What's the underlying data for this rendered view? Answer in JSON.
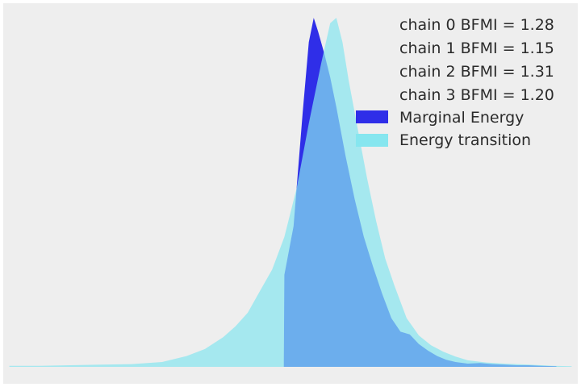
{
  "chart_data": {
    "type": "area",
    "title": "",
    "xlabel": "",
    "ylabel": "",
    "grid": false,
    "background": "#eeeeee",
    "xlim": [
      -4.6,
      4.8
    ],
    "ylim": [
      0,
      0.66
    ],
    "legend_position": "top-right",
    "bfmi": [
      {
        "label": "chain  0 BFMI = 1.28"
      },
      {
        "label": "chain  1 BFMI = 1.15"
      },
      {
        "label": "chain  2 BFMI = 1.31"
      },
      {
        "label": "chain  3 BFMI = 1.20"
      }
    ],
    "series": [
      {
        "name": "Marginal Energy",
        "color": "#2f2ee8",
        "x": [
          -0.01,
          0.0,
          0.15,
          0.3,
          0.4,
          0.48,
          0.55,
          0.65,
          0.75,
          0.85,
          1.0,
          1.15,
          1.3,
          1.45,
          1.6,
          1.75,
          1.9,
          2.05,
          2.2,
          2.35,
          2.5,
          2.65,
          2.8,
          3.0,
          3.2,
          3.4,
          3.6,
          3.8,
          4.0,
          4.2,
          4.45
        ],
        "y": [
          0.0,
          0.17,
          0.26,
          0.47,
          0.6,
          0.645,
          0.62,
          0.58,
          0.535,
          0.48,
          0.39,
          0.31,
          0.24,
          0.185,
          0.135,
          0.09,
          0.065,
          0.06,
          0.042,
          0.03,
          0.02,
          0.013,
          0.009,
          0.006,
          0.007,
          0.005,
          0.004,
          0.003,
          0.003,
          0.002,
          0.001
        ]
      },
      {
        "name": "Energy transition",
        "color": "#86e6ef",
        "x": [
          -4.5,
          -4.0,
          -3.5,
          -3.0,
          -2.5,
          -2.0,
          -1.6,
          -1.3,
          -1.0,
          -0.8,
          -0.6,
          -0.4,
          -0.2,
          0.0,
          0.2,
          0.4,
          0.6,
          0.75,
          0.85,
          0.95,
          1.05,
          1.2,
          1.35,
          1.5,
          1.65,
          1.8,
          2.0,
          2.2,
          2.4,
          2.6,
          2.8,
          3.0,
          3.3,
          3.6,
          4.0,
          4.4,
          4.7
        ],
        "y": [
          0.002,
          0.002,
          0.003,
          0.004,
          0.005,
          0.009,
          0.02,
          0.033,
          0.055,
          0.075,
          0.1,
          0.14,
          0.18,
          0.24,
          0.33,
          0.45,
          0.56,
          0.635,
          0.645,
          0.6,
          0.53,
          0.44,
          0.35,
          0.27,
          0.2,
          0.15,
          0.09,
          0.058,
          0.04,
          0.028,
          0.019,
          0.012,
          0.008,
          0.006,
          0.004,
          0.002,
          0.001
        ]
      }
    ]
  }
}
